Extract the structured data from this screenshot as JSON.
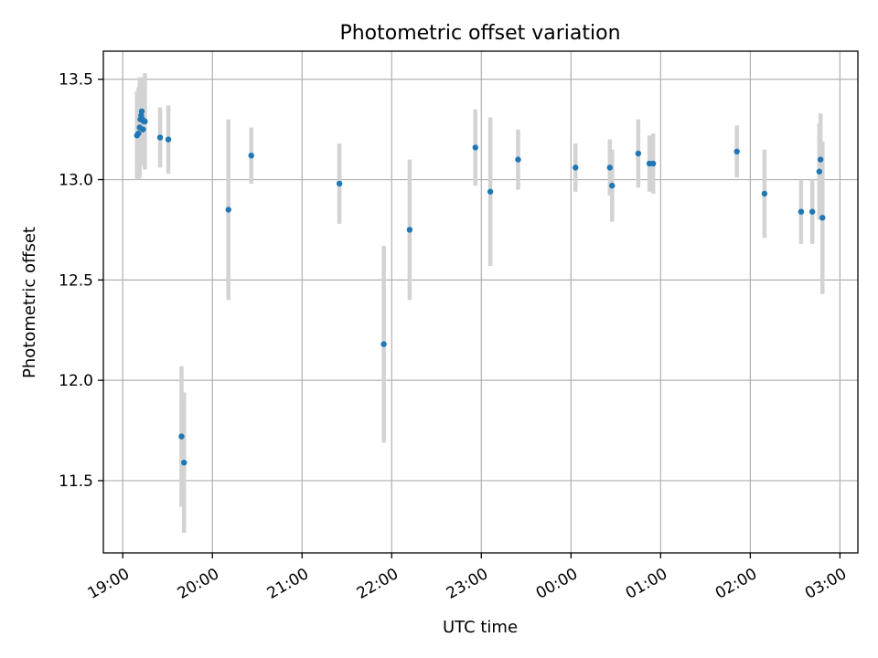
{
  "chart_data": {
    "type": "scatter",
    "title": "Photometric offset variation",
    "xlabel": "UTC time",
    "ylabel": "Photometric offset",
    "x_unit": "minutes after 19:00 UTC",
    "xlim": [
      -13,
      492
    ],
    "ylim": [
      11.14,
      13.64
    ],
    "grid": true,
    "x_ticks": [
      {
        "value": 0,
        "label": "19:00"
      },
      {
        "value": 60,
        "label": "20:00"
      },
      {
        "value": 120,
        "label": "21:00"
      },
      {
        "value": 180,
        "label": "22:00"
      },
      {
        "value": 240,
        "label": "23:00"
      },
      {
        "value": 300,
        "label": "00:00"
      },
      {
        "value": 360,
        "label": "01:00"
      },
      {
        "value": 420,
        "label": "02:00"
      },
      {
        "value": 480,
        "label": "03:00"
      }
    ],
    "y_ticks": [
      {
        "value": 11.5,
        "label": "11.5"
      },
      {
        "value": 12.0,
        "label": "12.0"
      },
      {
        "value": 12.5,
        "label": "12.5"
      },
      {
        "value": 13.0,
        "label": "13.0"
      },
      {
        "value": 13.5,
        "label": "13.5"
      }
    ],
    "series": [
      {
        "marker_color": "#1f77b4",
        "errorbar_color": "#d3d3d3",
        "points": [
          {
            "x": 9.5,
            "y": 13.22,
            "err": 0.22
          },
          {
            "x": 10.5,
            "y": 13.23,
            "err": 0.23
          },
          {
            "x": 11.3,
            "y": 13.26,
            "err": 0.25
          },
          {
            "x": 11.8,
            "y": 13.3,
            "err": 0.21
          },
          {
            "x": 12.3,
            "y": 13.32,
            "err": 0.18
          },
          {
            "x": 12.7,
            "y": 13.34,
            "err": 0.17
          },
          {
            "x": 13.2,
            "y": 13.3,
            "err": 0.2
          },
          {
            "x": 13.6,
            "y": 13.25,
            "err": 0.18
          },
          {
            "x": 14.1,
            "y": 13.29,
            "err": 0.22
          },
          {
            "x": 14.8,
            "y": 13.29,
            "err": 0.24
          },
          {
            "x": 25.0,
            "y": 13.21,
            "err": 0.15
          },
          {
            "x": 30.5,
            "y": 13.2,
            "err": 0.17
          },
          {
            "x": 39.3,
            "y": 11.72,
            "err": 0.35
          },
          {
            "x": 41.0,
            "y": 11.59,
            "err": 0.35
          },
          {
            "x": 70.7,
            "y": 12.85,
            "err": 0.45
          },
          {
            "x": 86.0,
            "y": 13.12,
            "err": 0.14
          },
          {
            "x": 145.0,
            "y": 12.98,
            "err": 0.2
          },
          {
            "x": 174.7,
            "y": 12.18,
            "err": 0.49
          },
          {
            "x": 192.0,
            "y": 12.75,
            "err": 0.35
          },
          {
            "x": 236.0,
            "y": 13.16,
            "err": 0.19
          },
          {
            "x": 246.0,
            "y": 12.94,
            "err": 0.37
          },
          {
            "x": 264.6,
            "y": 13.1,
            "err": 0.15
          },
          {
            "x": 303.0,
            "y": 13.06,
            "err": 0.12
          },
          {
            "x": 326.0,
            "y": 13.06,
            "err": 0.14
          },
          {
            "x": 327.5,
            "y": 12.97,
            "err": 0.18
          },
          {
            "x": 345.0,
            "y": 13.13,
            "err": 0.17
          },
          {
            "x": 352.5,
            "y": 13.08,
            "err": 0.14
          },
          {
            "x": 355.0,
            "y": 13.08,
            "err": 0.15
          },
          {
            "x": 411.0,
            "y": 13.14,
            "err": 0.13
          },
          {
            "x": 429.5,
            "y": 12.93,
            "err": 0.22
          },
          {
            "x": 454.0,
            "y": 12.84,
            "err": 0.16
          },
          {
            "x": 461.5,
            "y": 12.84,
            "err": 0.16
          },
          {
            "x": 466.2,
            "y": 13.04,
            "err": 0.24
          },
          {
            "x": 467.0,
            "y": 13.1,
            "err": 0.23
          },
          {
            "x": 468.3,
            "y": 12.81,
            "err": 0.38
          }
        ]
      }
    ]
  }
}
